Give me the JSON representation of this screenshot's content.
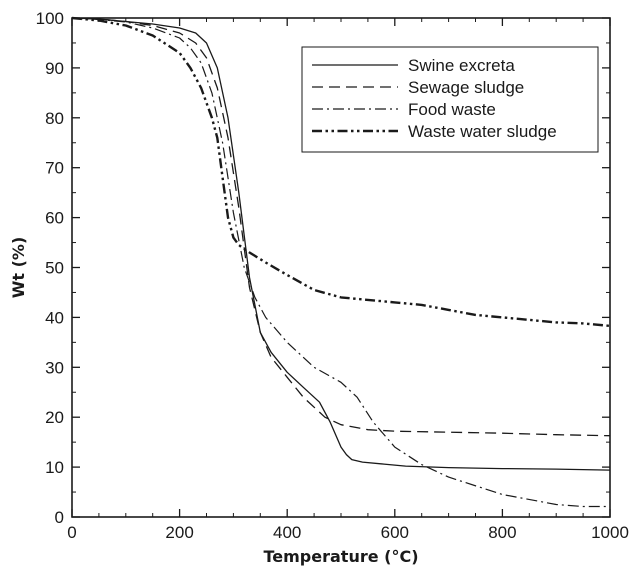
{
  "chart_data": {
    "type": "line",
    "title": "",
    "xlabel": "Temperature (°C)",
    "ylabel": "Wt (%)",
    "xlim": [
      0,
      1000
    ],
    "ylim": [
      0,
      100
    ],
    "xticks": [
      0,
      200,
      400,
      600,
      800,
      1000
    ],
    "yticks": [
      0,
      10,
      20,
      30,
      40,
      50,
      60,
      70,
      80,
      90,
      100
    ],
    "grid": false,
    "legend_position": "top-right",
    "series": [
      {
        "name": "Swine excreta",
        "style": "solid",
        "x": [
          0,
          50,
          100,
          150,
          200,
          230,
          250,
          270,
          290,
          310,
          330,
          350,
          370,
          400,
          430,
          460,
          480,
          500,
          510,
          520,
          540,
          580,
          620,
          700,
          800,
          900,
          1000
        ],
        "y": [
          100,
          99.8,
          99.3,
          98.8,
          98,
          97,
          95,
          90,
          80,
          65,
          48,
          37,
          33,
          29,
          26,
          23,
          19,
          14,
          12.5,
          11.5,
          11,
          10.6,
          10.2,
          9.9,
          9.7,
          9.6,
          9.4
        ]
      },
      {
        "name": "Sewage sludge",
        "style": "dashed",
        "x": [
          0,
          50,
          100,
          150,
          200,
          230,
          250,
          270,
          290,
          310,
          330,
          350,
          370,
          400,
          430,
          470,
          500,
          550,
          600,
          700,
          800,
          900,
          1000
        ],
        "y": [
          100,
          99.8,
          99.3,
          98.5,
          97,
          95,
          92,
          86,
          76,
          62,
          46,
          37,
          32,
          28,
          24,
          20,
          18.5,
          17.5,
          17.2,
          17,
          16.8,
          16.5,
          16.3
        ]
      },
      {
        "name": "Food waste",
        "style": "dashdot",
        "x": [
          0,
          50,
          100,
          150,
          200,
          220,
          240,
          260,
          280,
          300,
          320,
          340,
          360,
          400,
          450,
          500,
          530,
          560,
          600,
          650,
          700,
          800,
          900,
          950,
          1000
        ],
        "y": [
          100,
          99.7,
          99.2,
          98,
          96,
          94,
          91,
          85,
          75,
          61,
          50,
          44,
          40,
          35,
          30,
          27,
          24,
          19,
          14,
          10.5,
          8,
          4.5,
          2.5,
          2.1,
          2.1
        ]
      },
      {
        "name": "Waste water sludge",
        "style": "dashdotdot-bold",
        "x": [
          0,
          50,
          100,
          150,
          200,
          220,
          240,
          260,
          270,
          280,
          290,
          300,
          310,
          330,
          360,
          400,
          450,
          500,
          550,
          600,
          650,
          700,
          750,
          800,
          850,
          900,
          950,
          1000
        ],
        "y": [
          100,
          99.5,
          98.5,
          96.5,
          93,
          90,
          86,
          80,
          76,
          68,
          60,
          56,
          54.5,
          53,
          51,
          48.5,
          45.5,
          44,
          43.5,
          43,
          42.5,
          41.5,
          40.5,
          40,
          39.5,
          39,
          38.8,
          38.3
        ]
      }
    ]
  }
}
